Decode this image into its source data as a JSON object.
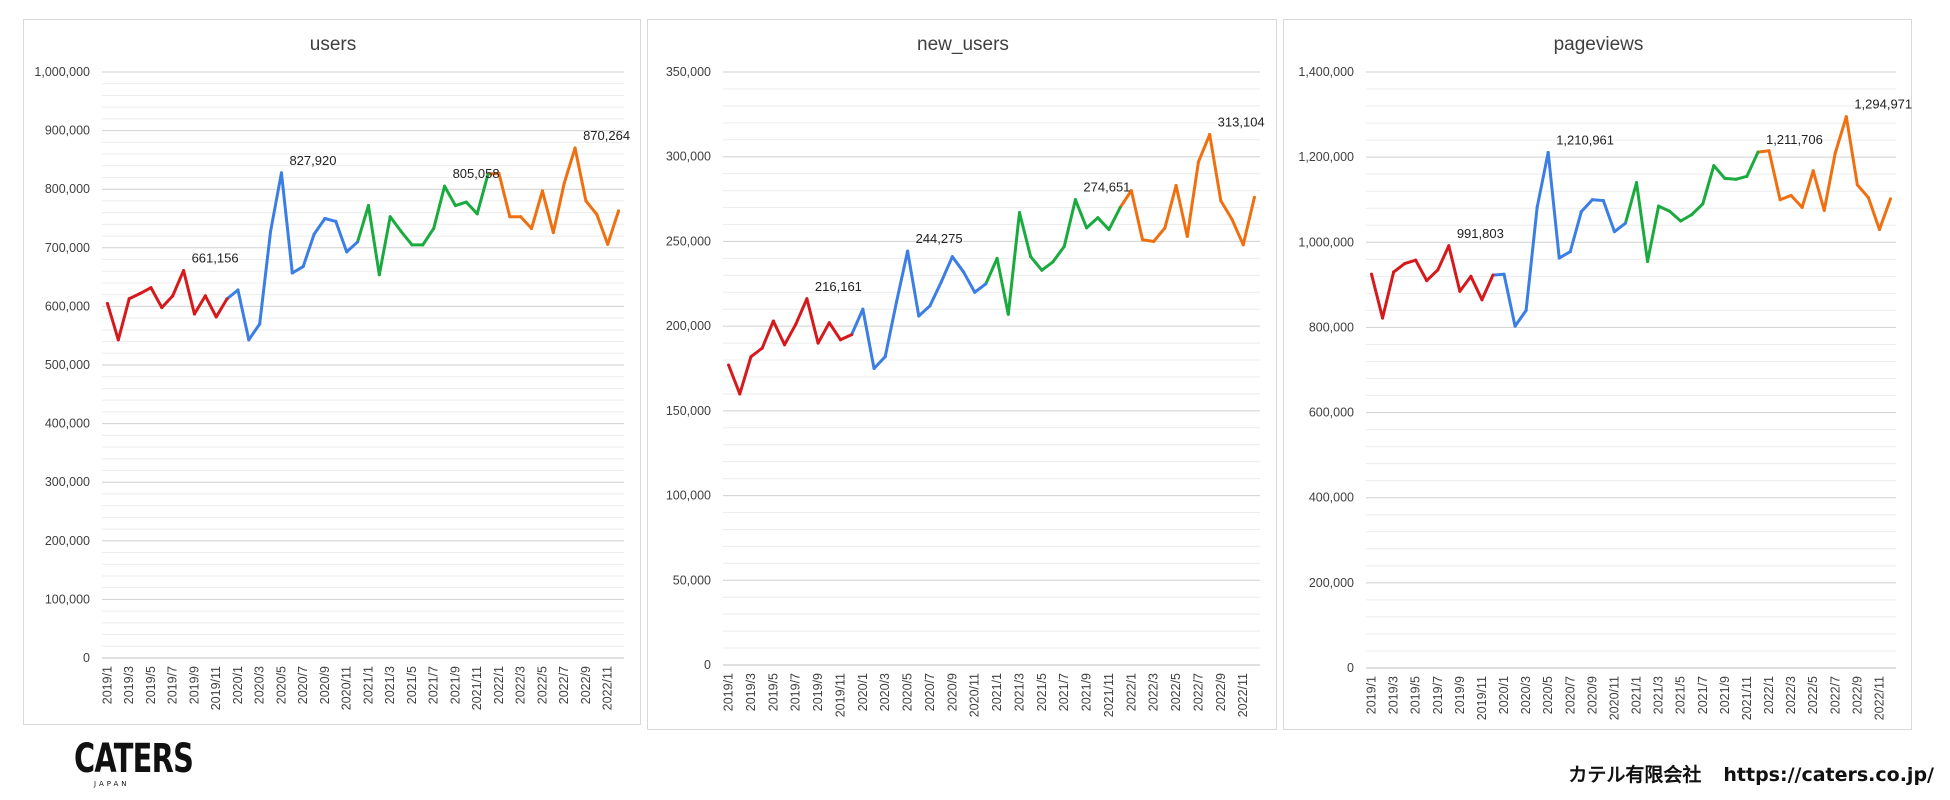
{
  "brand": {
    "logo": "CATERS",
    "logo_sub": "JAPAN",
    "company": "カテル有限会社",
    "url": "https://caters.co.jp/"
  },
  "colors": {
    "2019": "#d7191c",
    "2020": "#3a7ee6",
    "2021": "#1aab3f",
    "2022": "#f07010"
  },
  "chart_data": [
    {
      "type": "line",
      "title": "users",
      "ylim": [
        0,
        1000000
      ],
      "yticks": [
        0,
        100000,
        200000,
        300000,
        400000,
        500000,
        600000,
        700000,
        800000,
        900000,
        1000000
      ],
      "ytick_labels": [
        "0",
        "100,000",
        "200,000",
        "300,000",
        "400,000",
        "500,000",
        "600,000",
        "700,000",
        "800,000",
        "900,000",
        "1,000,000"
      ],
      "x": [
        "2019/1",
        "2019/2",
        "2019/3",
        "2019/4",
        "2019/5",
        "2019/6",
        "2019/7",
        "2019/8",
        "2019/9",
        "2019/10",
        "2019/11",
        "2019/12",
        "2020/1",
        "2020/2",
        "2020/3",
        "2020/4",
        "2020/5",
        "2020/6",
        "2020/7",
        "2020/8",
        "2020/9",
        "2020/10",
        "2020/11",
        "2020/12",
        "2021/1",
        "2021/2",
        "2021/3",
        "2021/4",
        "2021/5",
        "2021/6",
        "2021/7",
        "2021/8",
        "2021/9",
        "2021/10",
        "2021/11",
        "2021/12",
        "2022/1",
        "2022/2",
        "2022/3",
        "2022/4",
        "2022/5",
        "2022/6",
        "2022/7",
        "2022/8",
        "2022/9",
        "2022/10",
        "2022/11",
        "2022/12"
      ],
      "xtick_labels": [
        "2019/1",
        "2019/3",
        "2019/5",
        "2019/7",
        "2019/9",
        "2019/11",
        "2020/1",
        "2020/3",
        "2020/5",
        "2020/7",
        "2020/9",
        "2020/11",
        "2021/1",
        "2021/3",
        "2021/5",
        "2021/7",
        "2021/9",
        "2021/11",
        "2022/1",
        "2022/3",
        "2022/5",
        "2022/7",
        "2022/9",
        "2022/11"
      ],
      "values": [
        605000,
        543000,
        613000,
        622000,
        632000,
        598000,
        618000,
        661156,
        587000,
        618000,
        582000,
        613000,
        628000,
        543000,
        570000,
        728000,
        827920,
        657000,
        668000,
        723000,
        750000,
        745000,
        693000,
        710000,
        772000,
        654000,
        753000,
        728000,
        705000,
        705000,
        733000,
        805058,
        772000,
        778000,
        758000,
        826000,
        827000,
        753000,
        753000,
        733000,
        797000,
        726000,
        810000,
        870264,
        780000,
        757000,
        706000,
        763000
      ],
      "annotations": [
        {
          "index": 7,
          "label": "661,156"
        },
        {
          "index": 16,
          "label": "827,920"
        },
        {
          "index": 31,
          "label": "805,058"
        },
        {
          "index": 43,
          "label": "870,264"
        }
      ]
    },
    {
      "type": "line",
      "title": "new_users",
      "ylim": [
        0,
        350000
      ],
      "yticks": [
        0,
        50000,
        100000,
        150000,
        200000,
        250000,
        300000,
        350000
      ],
      "ytick_labels": [
        "0",
        "50,000",
        "100,000",
        "150,000",
        "200,000",
        "250,000",
        "300,000",
        "350,000"
      ],
      "x": [
        "2019/1",
        "2019/2",
        "2019/3",
        "2019/4",
        "2019/5",
        "2019/6",
        "2019/7",
        "2019/8",
        "2019/9",
        "2019/10",
        "2019/11",
        "2019/12",
        "2020/1",
        "2020/2",
        "2020/3",
        "2020/4",
        "2020/5",
        "2020/6",
        "2020/7",
        "2020/8",
        "2020/9",
        "2020/10",
        "2020/11",
        "2020/12",
        "2021/1",
        "2021/2",
        "2021/3",
        "2021/4",
        "2021/5",
        "2021/6",
        "2021/7",
        "2021/8",
        "2021/9",
        "2021/10",
        "2021/11",
        "2021/12",
        "2022/1",
        "2022/2",
        "2022/3",
        "2022/4",
        "2022/5",
        "2022/6",
        "2022/7",
        "2022/8",
        "2022/9",
        "2022/10",
        "2022/11",
        "2022/12"
      ],
      "xtick_labels": [
        "2019/1",
        "2019/3",
        "2019/5",
        "2019/7",
        "2019/9",
        "2019/11",
        "2020/1",
        "2020/3",
        "2020/5",
        "2020/7",
        "2020/9",
        "2020/11",
        "2021/1",
        "2021/3",
        "2021/5",
        "2021/7",
        "2021/9",
        "2021/11",
        "2022/1",
        "2022/3",
        "2022/5",
        "2022/7",
        "2022/9",
        "2022/11"
      ],
      "values": [
        177000,
        160000,
        182000,
        187000,
        203000,
        189000,
        201000,
        216161,
        190000,
        202000,
        192000,
        195000,
        210000,
        175000,
        182000,
        214000,
        244275,
        206000,
        212000,
        226000,
        241000,
        232000,
        220000,
        225000,
        240000,
        207000,
        267000,
        241000,
        233000,
        238000,
        247000,
        274651,
        258000,
        264000,
        257000,
        270000,
        280000,
        251000,
        250000,
        258000,
        283000,
        253000,
        297000,
        313104,
        274000,
        263000,
        248000,
        276000
      ],
      "annotations": [
        {
          "index": 7,
          "label": "216,161"
        },
        {
          "index": 16,
          "label": "244,275"
        },
        {
          "index": 31,
          "label": "274,651"
        },
        {
          "index": 43,
          "label": "313,104"
        }
      ]
    },
    {
      "type": "line",
      "title": "pageviews",
      "ylim": [
        0,
        1400000
      ],
      "yticks": [
        0,
        200000,
        400000,
        600000,
        800000,
        1000000,
        1200000,
        1400000
      ],
      "ytick_labels": [
        "0",
        "200,000",
        "400,000",
        "600,000",
        "800,000",
        "1,000,000",
        "1,200,000",
        "1,400,000"
      ],
      "x": [
        "2019/1",
        "2019/2",
        "2019/3",
        "2019/4",
        "2019/5",
        "2019/6",
        "2019/7",
        "2019/8",
        "2019/9",
        "2019/10",
        "2019/11",
        "2019/12",
        "2020/1",
        "2020/2",
        "2020/3",
        "2020/4",
        "2020/5",
        "2020/6",
        "2020/7",
        "2020/8",
        "2020/9",
        "2020/10",
        "2020/11",
        "2020/12",
        "2021/1",
        "2021/2",
        "2021/3",
        "2021/4",
        "2021/5",
        "2021/6",
        "2021/7",
        "2021/8",
        "2021/9",
        "2021/10",
        "2021/11",
        "2021/12",
        "2022/1",
        "2022/2",
        "2022/3",
        "2022/4",
        "2022/5",
        "2022/6",
        "2022/7",
        "2022/8",
        "2022/9",
        "2022/10",
        "2022/11",
        "2022/12"
      ],
      "xtick_labels": [
        "2019/1",
        "2019/3",
        "2019/5",
        "2019/7",
        "2019/9",
        "2019/11",
        "2020/1",
        "2020/3",
        "2020/5",
        "2020/7",
        "2020/9",
        "2020/11",
        "2021/1",
        "2021/3",
        "2021/5",
        "2021/7",
        "2021/9",
        "2021/11",
        "2022/1",
        "2022/3",
        "2022/5",
        "2022/7",
        "2022/9",
        "2022/11"
      ],
      "values": [
        925000,
        822000,
        930000,
        950000,
        958000,
        910000,
        935000,
        991803,
        885000,
        920000,
        865000,
        923000,
        925000,
        803000,
        840000,
        1082000,
        1210961,
        963000,
        978000,
        1072000,
        1100000,
        1098000,
        1025000,
        1045000,
        1140000,
        955000,
        1085000,
        1073000,
        1050000,
        1065000,
        1090000,
        1180000,
        1150000,
        1148000,
        1155000,
        1211706,
        1215000,
        1100000,
        1110000,
        1082000,
        1168000,
        1075000,
        1210000,
        1294971,
        1135000,
        1105000,
        1030000,
        1102000
      ],
      "annotations": [
        {
          "index": 7,
          "label": "991,803"
        },
        {
          "index": 16,
          "label": "1,210,961"
        },
        {
          "index": 35,
          "label": "1,211,706"
        },
        {
          "index": 43,
          "label": "1,294,971"
        }
      ]
    }
  ]
}
